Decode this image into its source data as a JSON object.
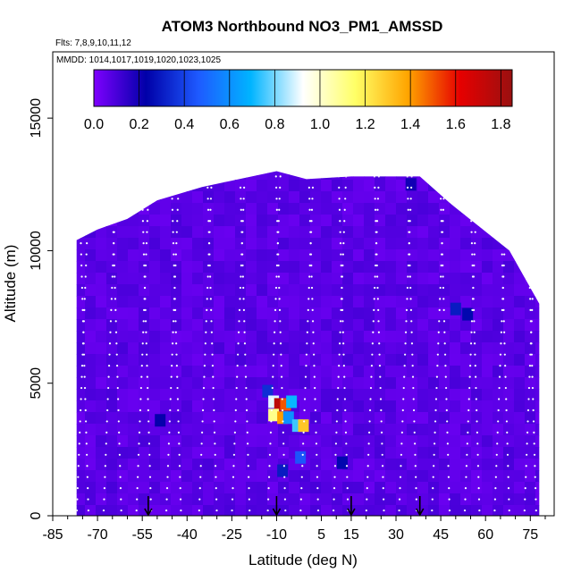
{
  "chart_data": {
    "type": "heatmap",
    "title": "ATOM3 Northbound NO3_PM1_AMSSD",
    "subtitle_flights": "Flts: 7,8,9,10,11,12",
    "subtitle_dates": "MMDD: 1014,1017,1019,1020,1023,1025",
    "xlabel": "Latitude (deg N)",
    "ylabel": "Altitude (m)",
    "xlim": [
      -85,
      83
    ],
    "ylim": [
      0,
      17500
    ],
    "x_ticks": [
      -85,
      -70,
      -55,
      -40,
      -25,
      -10,
      5,
      15,
      30,
      45,
      60,
      75
    ],
    "x_tick_labels": [
      "-85",
      "-70",
      "-55",
      "-40",
      "-25",
      "-10",
      "5",
      "15",
      "30",
      "45",
      "60",
      "75"
    ],
    "y_ticks": [
      0,
      5000,
      10000,
      15000
    ],
    "y_tick_labels": [
      "0",
      "5000",
      "10000",
      "15000"
    ],
    "colorbar": {
      "min": 0.0,
      "max": 1.85,
      "ticks": [
        0.0,
        0.2,
        0.4,
        0.6,
        0.8,
        1.0,
        1.2,
        1.4,
        1.6,
        1.8
      ],
      "tick_labels": [
        "0.0",
        "0.2",
        "0.4",
        "0.6",
        "0.8",
        "1.0",
        "1.2",
        "1.4",
        "1.6",
        "1.8"
      ],
      "colors": [
        "#7f00ff",
        "#0000a8",
        "#1e5aff",
        "#00b4ff",
        "#ffffff",
        "#ffff66",
        "#ffa500",
        "#e60000",
        "#9a1010"
      ]
    },
    "background_value": 0.07,
    "coverage_envelope": [
      {
        "lat": -77,
        "alt_max": 10400
      },
      {
        "lat": -70,
        "alt_max": 10800
      },
      {
        "lat": -60,
        "alt_max": 11200
      },
      {
        "lat": -50,
        "alt_max": 11900
      },
      {
        "lat": -35,
        "alt_max": 12400
      },
      {
        "lat": -10,
        "alt_max": 13000
      },
      {
        "lat": 0,
        "alt_max": 12700
      },
      {
        "lat": 15,
        "alt_max": 12800
      },
      {
        "lat": 38,
        "alt_max": 12800
      },
      {
        "lat": 48,
        "alt_max": 11800
      },
      {
        "lat": 58,
        "alt_max": 10900
      },
      {
        "lat": 68,
        "alt_max": 10000
      },
      {
        "lat": 78,
        "alt_max": 8000
      }
    ],
    "high_value_cells": [
      {
        "lat": -13,
        "alt": 4700,
        "value": 0.35
      },
      {
        "lat": -11,
        "alt": 4300,
        "value": 0.9
      },
      {
        "lat": -9,
        "alt": 4200,
        "value": 1.75
      },
      {
        "lat": -7,
        "alt": 4200,
        "value": 1.5
      },
      {
        "lat": -5,
        "alt": 4300,
        "value": 0.7
      },
      {
        "lat": -11,
        "alt": 3800,
        "value": 1.1
      },
      {
        "lat": -8,
        "alt": 3700,
        "value": 1.4
      },
      {
        "lat": -6,
        "alt": 3700,
        "value": 0.6
      },
      {
        "lat": -3,
        "alt": 3400,
        "value": 0.75
      },
      {
        "lat": -1,
        "alt": 3400,
        "value": 1.3
      },
      {
        "lat": -2,
        "alt": 2200,
        "value": 0.45
      },
      {
        "lat": -8,
        "alt": 1700,
        "value": 0.3
      },
      {
        "lat": -49,
        "alt": 3600,
        "value": 0.22
      },
      {
        "lat": 12,
        "alt": 2000,
        "value": 0.25
      },
      {
        "lat": 50,
        "alt": 7800,
        "value": 0.3
      },
      {
        "lat": 54,
        "alt": 7600,
        "value": 0.25
      },
      {
        "lat": 35,
        "alt": 12500,
        "value": 0.2
      }
    ],
    "flight_track_points": "white dotted profile tracks (values not printed)",
    "arrow_latitudes": [
      -53,
      -10,
      15,
      38
    ]
  }
}
